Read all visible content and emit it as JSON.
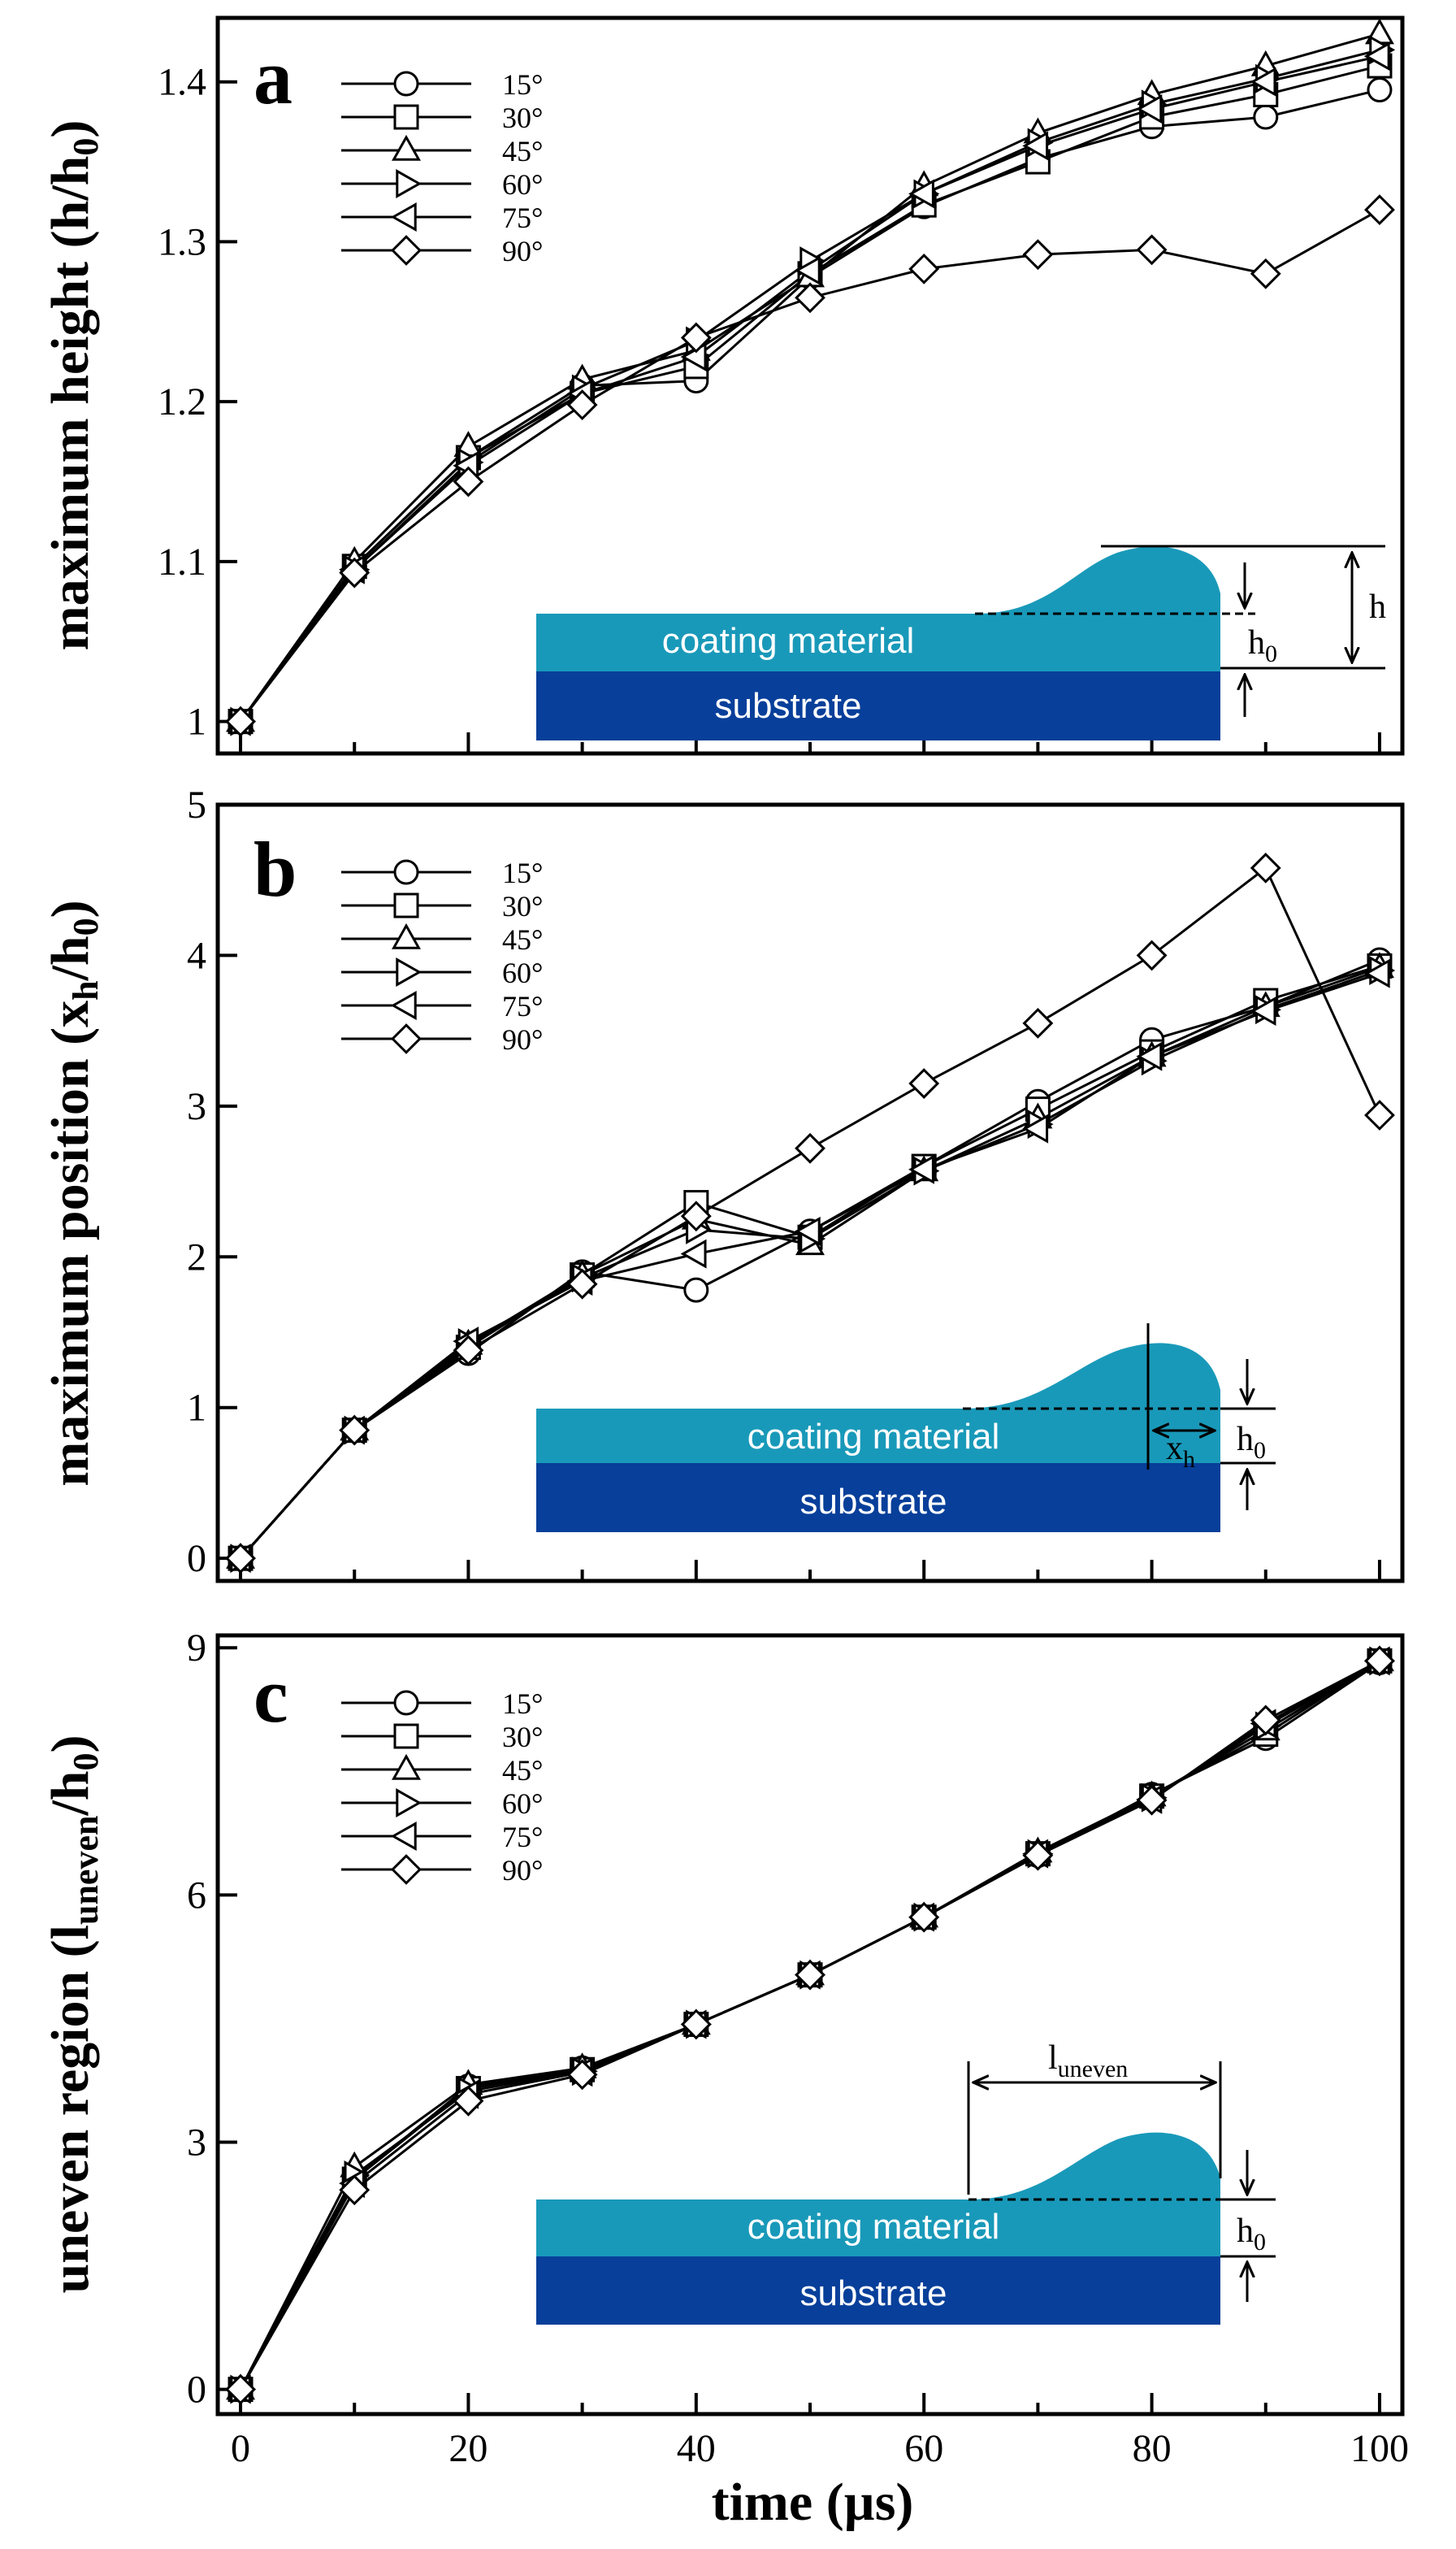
{
  "figure": {
    "xlabel": "time (µs)"
  },
  "inset": {
    "coating_label": "coating material",
    "substrate_label": "substrate",
    "h_label": "h",
    "h0_label": "h",
    "h0_sub": "0",
    "xh_label": "x",
    "xh_sub": "h",
    "luneven_label": "l",
    "luneven_sub": "uneven",
    "colors": {
      "coating": "#1999b9",
      "substrate": "#073f9a",
      "bump": "#1999b9"
    }
  },
  "chart_data": [
    {
      "type": "line",
      "panel": "a",
      "ylabel_main": "maximum height (h/h",
      "ylabel_sub": "0",
      "ylabel_tail": ")",
      "x": [
        0,
        10,
        20,
        30,
        40,
        50,
        60,
        70,
        80,
        90,
        100
      ],
      "xlim": [
        -2,
        102
      ],
      "ylim": [
        0.98,
        1.44
      ],
      "xticks": [
        0,
        20,
        40,
        60,
        80,
        100
      ],
      "yticks": [
        1.0,
        1.1,
        1.2,
        1.3,
        1.4
      ],
      "ytick_labels": [
        "1",
        "1.1",
        "1.2",
        "1.3",
        "1.4"
      ],
      "series": [
        {
          "name": "15°",
          "marker": "circle",
          "values": [
            1.0,
            1.097,
            1.165,
            1.21,
            1.213,
            1.278,
            1.322,
            1.352,
            1.372,
            1.378,
            1.395
          ]
        },
        {
          "name": "30°",
          "marker": "square",
          "values": [
            1.0,
            1.097,
            1.165,
            1.205,
            1.222,
            1.28,
            1.323,
            1.35,
            1.378,
            1.392,
            1.41
          ]
        },
        {
          "name": "45°",
          "marker": "triangle-up",
          "values": [
            1.0,
            1.1,
            1.172,
            1.214,
            1.232,
            1.278,
            1.335,
            1.368,
            1.392,
            1.41,
            1.43
          ]
        },
        {
          "name": "60°",
          "marker": "triangle-right",
          "values": [
            1.0,
            1.095,
            1.162,
            1.208,
            1.238,
            1.288,
            1.33,
            1.362,
            1.386,
            1.402,
            1.42
          ]
        },
        {
          "name": "75°",
          "marker": "triangle-left",
          "values": [
            1.0,
            1.095,
            1.16,
            1.205,
            1.228,
            1.282,
            1.33,
            1.36,
            1.383,
            1.4,
            1.416
          ]
        },
        {
          "name": "90°",
          "marker": "diamond",
          "values": [
            1.0,
            1.093,
            1.15,
            1.198,
            1.24,
            1.265,
            1.283,
            1.292,
            1.295,
            1.28,
            1.32
          ]
        }
      ]
    },
    {
      "type": "line",
      "panel": "b",
      "ylabel_main": "maximum position (x",
      "ylabel_sub": "h",
      "ylabel_tail": "/h",
      "ylabel_sub2": "0",
      "ylabel_tail2": ")",
      "x": [
        0,
        10,
        20,
        30,
        40,
        50,
        60,
        70,
        80,
        90,
        100
      ],
      "xlim": [
        -2,
        102
      ],
      "ylim": [
        -0.15,
        5.0
      ],
      "xticks": [
        0,
        20,
        40,
        60,
        80,
        100
      ],
      "yticks": [
        0,
        1,
        2,
        3,
        4,
        5
      ],
      "ytick_labels": [
        "0",
        "1",
        "2",
        "3",
        "4",
        "5"
      ],
      "series": [
        {
          "name": "15°",
          "marker": "circle",
          "values": [
            0.0,
            0.85,
            1.36,
            1.9,
            1.78,
            2.17,
            2.6,
            3.03,
            3.44,
            3.66,
            3.97
          ]
        },
        {
          "name": "30°",
          "marker": "square",
          "values": [
            0.0,
            0.85,
            1.4,
            1.88,
            2.36,
            2.13,
            2.6,
            2.98,
            3.36,
            3.7,
            3.93
          ]
        },
        {
          "name": "45°",
          "marker": "triangle-up",
          "values": [
            0.0,
            0.85,
            1.42,
            1.88,
            2.25,
            2.08,
            2.57,
            2.92,
            3.33,
            3.66,
            3.92
          ]
        },
        {
          "name": "60°",
          "marker": "triangle-right",
          "values": [
            0.0,
            0.85,
            1.43,
            1.86,
            2.18,
            2.12,
            2.57,
            2.88,
            3.3,
            3.64,
            3.9
          ]
        },
        {
          "name": "75°",
          "marker": "triangle-left",
          "values": [
            0.0,
            0.85,
            1.44,
            1.84,
            2.02,
            2.17,
            2.58,
            2.85,
            3.33,
            3.63,
            3.88
          ]
        },
        {
          "name": "90°",
          "marker": "diamond",
          "values": [
            0.0,
            0.85,
            1.38,
            1.82,
            2.27,
            2.72,
            3.15,
            3.55,
            4.0,
            4.58,
            2.94
          ]
        }
      ]
    },
    {
      "type": "line",
      "panel": "c",
      "ylabel_main": "uneven region (l",
      "ylabel_sub": "uneven",
      "ylabel_tail": "/h",
      "ylabel_sub2": "0",
      "ylabel_tail2": ")",
      "x": [
        0,
        10,
        20,
        30,
        40,
        50,
        60,
        70,
        80,
        90,
        100
      ],
      "xlim": [
        -2,
        102
      ],
      "ylim": [
        -0.3,
        9.15
      ],
      "xticks": [
        0,
        20,
        40,
        60,
        80,
        100
      ],
      "xtick_labels": [
        "0",
        "20",
        "40",
        "60",
        "80",
        "100"
      ],
      "yticks": [
        0,
        3,
        6,
        9
      ],
      "ytick_labels": [
        "0",
        "3",
        "6",
        "9"
      ],
      "series": [
        {
          "name": "15°",
          "marker": "circle",
          "values": [
            0.0,
            2.55,
            3.68,
            3.9,
            4.43,
            5.03,
            5.73,
            6.48,
            7.22,
            7.9,
            8.82
          ]
        },
        {
          "name": "30°",
          "marker": "square",
          "values": [
            0.0,
            2.55,
            3.65,
            3.88,
            4.43,
            5.03,
            5.73,
            6.5,
            7.2,
            7.95,
            8.84
          ]
        },
        {
          "name": "45°",
          "marker": "triangle-up",
          "values": [
            0.0,
            2.7,
            3.7,
            3.9,
            4.43,
            5.03,
            5.73,
            6.52,
            7.2,
            8.0,
            8.84
          ]
        },
        {
          "name": "60°",
          "marker": "triangle-right",
          "values": [
            0.0,
            2.6,
            3.62,
            3.86,
            4.43,
            5.03,
            5.73,
            6.5,
            7.18,
            8.05,
            8.84
          ]
        },
        {
          "name": "75°",
          "marker": "triangle-left",
          "values": [
            0.0,
            2.5,
            3.58,
            3.85,
            4.43,
            5.03,
            5.73,
            6.5,
            7.16,
            8.08,
            8.84
          ]
        },
        {
          "name": "90°",
          "marker": "diamond",
          "values": [
            0.0,
            2.42,
            3.5,
            3.82,
            4.43,
            5.03,
            5.73,
            6.48,
            7.15,
            8.12,
            8.84
          ]
        }
      ]
    }
  ]
}
